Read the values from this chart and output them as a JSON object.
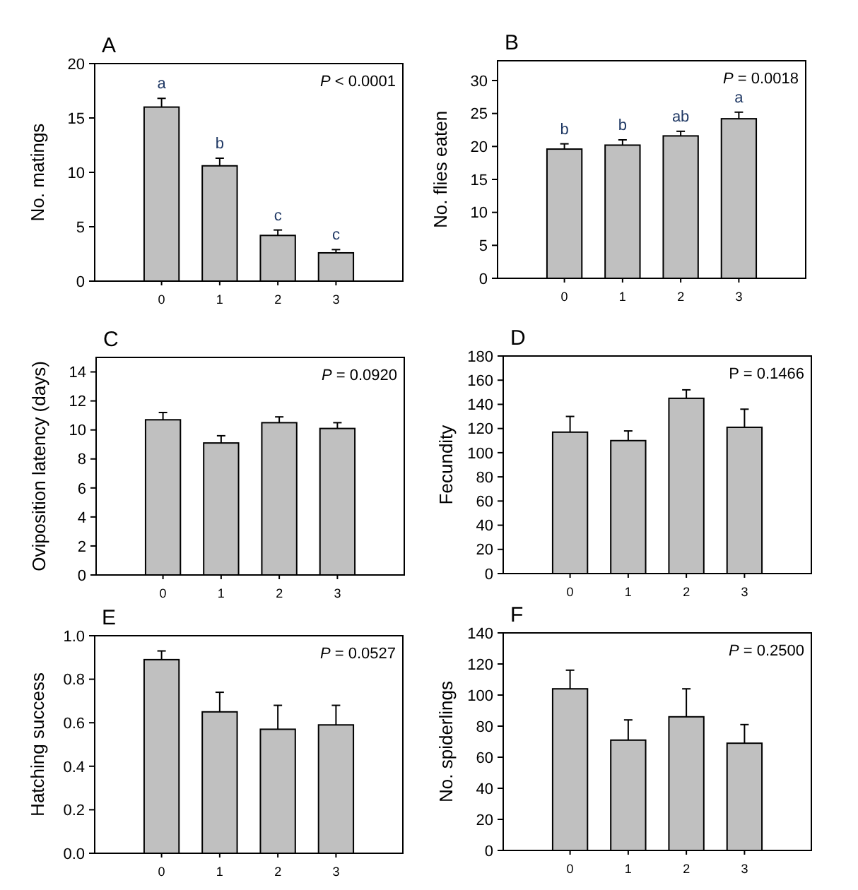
{
  "chart_data": [
    {
      "type": "bar",
      "title": "A",
      "ylabel": "No. matings",
      "categories": [
        "0",
        "1",
        "2",
        "3"
      ],
      "values": [
        16.0,
        10.6,
        4.2,
        2.6
      ],
      "errors": [
        [
          16.0,
          16.8
        ],
        [
          10.6,
          11.3
        ],
        [
          4.2,
          4.7
        ],
        [
          2.6,
          2.9
        ]
      ],
      "color": "#c0c0c0",
      "ylim": [
        0,
        20
      ],
      "yticks": [
        0,
        5,
        10,
        15,
        20
      ],
      "grid": false,
      "annotations": [
        "P < 0.0001",
        {
          "text": "a",
          "x": "0",
          "y": 16.8
        },
        {
          "text": "b",
          "x": "1",
          "y": 11.3
        },
        {
          "text": "c",
          "x": "2",
          "y": 4.7
        },
        {
          "text": "c",
          "x": "3",
          "y": 2.9
        }
      ]
    },
    {
      "type": "bar",
      "title": "B",
      "ylabel": "No. flies eaten",
      "categories": [
        "0",
        "1",
        "2",
        "3"
      ],
      "values": [
        19.6,
        20.2,
        21.6,
        24.2
      ],
      "errors": [
        [
          19.6,
          20.4
        ],
        [
          20.2,
          21.0
        ],
        [
          21.6,
          22.3
        ],
        [
          24.2,
          25.2
        ]
      ],
      "color": "#c0c0c0",
      "ylim": [
        0,
        33
      ],
      "yticks": [
        0,
        5,
        10,
        15,
        20,
        25,
        30
      ],
      "grid": false,
      "annotations": [
        "P = 0.0018",
        {
          "text": "b",
          "x": "0",
          "y": 20.4
        },
        {
          "text": "b",
          "x": "1",
          "y": 21.0
        },
        {
          "text": "ab",
          "x": "2",
          "y": 22.3
        },
        {
          "text": "a",
          "x": "3",
          "y": 25.2
        }
      ]
    },
    {
      "type": "bar",
      "title": "C",
      "ylabel": "Oviposition latency (days)",
      "categories": [
        "0",
        "1",
        "2",
        "3"
      ],
      "values": [
        10.7,
        9.1,
        10.5,
        10.1
      ],
      "errors": [
        [
          10.7,
          11.2
        ],
        [
          9.1,
          9.6
        ],
        [
          10.5,
          10.9
        ],
        [
          10.1,
          10.5
        ]
      ],
      "color": "#c0c0c0",
      "ylim": [
        0,
        15
      ],
      "yticks": [
        0,
        2,
        4,
        6,
        8,
        10,
        12,
        14
      ],
      "grid": false,
      "annotations": [
        "P = 0.0920"
      ]
    },
    {
      "type": "bar",
      "title": "D",
      "ylabel": "Fecundity",
      "categories": [
        "0",
        "1",
        "2",
        "3"
      ],
      "values": [
        117,
        110,
        145,
        121
      ],
      "errors": [
        [
          117,
          130
        ],
        [
          110,
          118
        ],
        [
          145,
          152
        ],
        [
          121,
          136
        ]
      ],
      "color": "#c0c0c0",
      "ylim": [
        0,
        180
      ],
      "yticks": [
        0,
        20,
        40,
        60,
        80,
        100,
        120,
        140,
        160,
        180
      ],
      "grid": false,
      "annotations": [
        "P = 0.1466"
      ]
    },
    {
      "type": "bar",
      "title": "E",
      "ylabel": "Hatching success",
      "categories": [
        "0",
        "1",
        "2",
        "3"
      ],
      "values": [
        0.89,
        0.65,
        0.57,
        0.59
      ],
      "errors": [
        [
          0.89,
          0.93
        ],
        [
          0.65,
          0.74
        ],
        [
          0.57,
          0.68
        ],
        [
          0.59,
          0.68
        ]
      ],
      "color": "#c0c0c0",
      "ylim": [
        0,
        1
      ],
      "yticks": [
        {
          "value": 0,
          "label": "0.0"
        },
        0.2,
        0.4,
        0.6,
        0.8,
        {
          "value": 1,
          "label": "1.0"
        }
      ],
      "grid": false,
      "annotations": [
        "P = 0.0527"
      ]
    },
    {
      "type": "bar",
      "title": "F",
      "ylabel": "No. spiderlings",
      "categories": [
        "0",
        "1",
        "2",
        "3"
      ],
      "values": [
        104,
        71,
        86,
        69
      ],
      "errors": [
        [
          104,
          116
        ],
        [
          71,
          84
        ],
        [
          86,
          104
        ],
        [
          69,
          81
        ]
      ],
      "color": "#c0c0c0",
      "ylim": [
        0,
        140
      ],
      "yticks": [
        0,
        20,
        40,
        60,
        80,
        100,
        120,
        140
      ],
      "grid": false,
      "annotations": [
        "P = 0.2500"
      ]
    }
  ]
}
